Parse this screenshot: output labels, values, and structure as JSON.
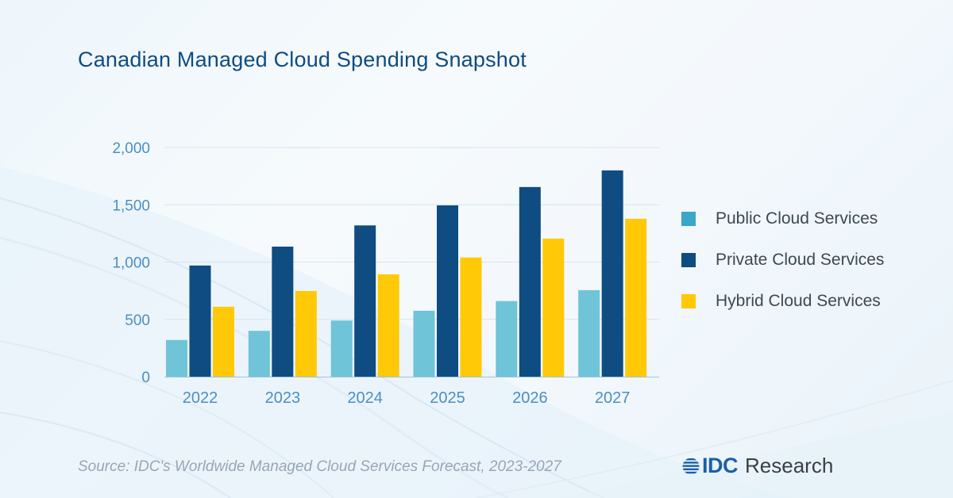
{
  "title": "Canadian Managed Cloud Spending Snapshot",
  "source": "Source: IDC's Worldwide Managed Cloud Services Forecast, 2023-2027",
  "logo": {
    "brand": "IDC",
    "suffix": "Research",
    "icon": "globe-stripes-icon"
  },
  "colors": {
    "public": "#6fc4d8",
    "public_legend": "#3aa6c9",
    "private": "#0f4c81",
    "hybrid": "#ffc907",
    "axis_text": "#4a8fc4",
    "title": "#0f4c81"
  },
  "legend": [
    {
      "label": "Public Cloud Services",
      "color": "#3aa6c9"
    },
    {
      "label": "Private Cloud Services",
      "color": "#0f4c81"
    },
    {
      "label": "Hybrid Cloud Services",
      "color": "#ffc907"
    }
  ],
  "chart_data": {
    "type": "bar",
    "title": "Canadian Managed Cloud Spending Snapshot",
    "xlabel": "",
    "ylabel": "",
    "categories": [
      "2022",
      "2023",
      "2024",
      "2025",
      "2026",
      "2027"
    ],
    "series": [
      {
        "name": "Public Cloud Services",
        "color": "#6fc4d8",
        "values": [
          320,
          400,
          490,
          575,
          660,
          755
        ]
      },
      {
        "name": "Private Cloud Services",
        "color": "#0f4c81",
        "values": [
          970,
          1135,
          1320,
          1495,
          1655,
          1800
        ]
      },
      {
        "name": "Hybrid Cloud Services",
        "color": "#ffc907",
        "values": [
          610,
          748,
          893,
          1040,
          1205,
          1378
        ]
      }
    ],
    "ylim": [
      0,
      2000
    ],
    "yticks": [
      0,
      500,
      1000,
      1500,
      2000
    ],
    "ytick_labels": [
      "0",
      "500",
      "1,000",
      "1,500",
      "2,000"
    ],
    "grid": true,
    "legend_position": "right"
  }
}
